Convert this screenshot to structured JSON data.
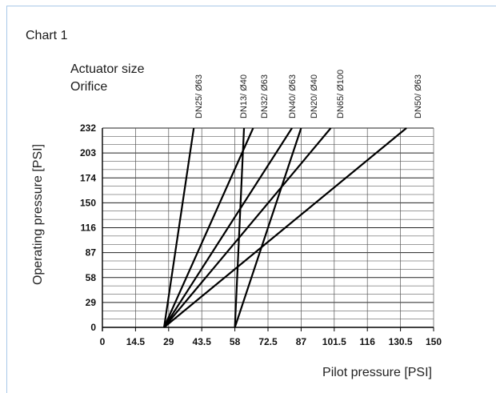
{
  "chart_data": {
    "type": "line",
    "title": "Chart 1",
    "header_line1": "Actuator size",
    "header_line2": "Orifice",
    "xlabel": "Pilot pressure [PSI]",
    "ylabel": "Operating pressure  [PSI]",
    "x_ticks": [
      "0",
      "14.5",
      "29",
      "43.5",
      "58",
      "72.5",
      "87",
      "101.5",
      "116",
      "130.5",
      "150"
    ],
    "y_ticks": [
      "0",
      "29",
      "58",
      "87",
      "116",
      "150",
      "174",
      "203",
      "232"
    ],
    "series": [
      {
        "name": "DN25/ Ø63",
        "x": [
          27,
          40
        ],
        "y": [
          0,
          232
        ]
      },
      {
        "name": "DN13/ Ø40",
        "x": [
          58,
          62
        ],
        "y": [
          0,
          232
        ]
      },
      {
        "name": "DN32/ Ø63",
        "x": [
          27,
          66
        ],
        "y": [
          0,
          232
        ]
      },
      {
        "name": "DN40/ Ø63",
        "x": [
          27,
          83
        ],
        "y": [
          0,
          232
        ]
      },
      {
        "name": "DN20/ Ø40",
        "x": [
          58,
          87
        ],
        "y": [
          0,
          232
        ]
      },
      {
        "name": "DN65/ Ø100",
        "x": [
          27,
          100
        ],
        "y": [
          0,
          232
        ]
      },
      {
        "name": "DN50/ Ø63",
        "x": [
          27,
          134
        ],
        "y": [
          0,
          232
        ]
      }
    ]
  }
}
